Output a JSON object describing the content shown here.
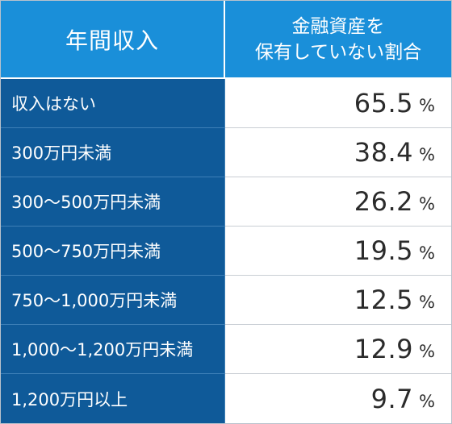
{
  "header": {
    "col1": "年間収入",
    "col2_line1": "金融資産を",
    "col2_line2": "保有していない割合"
  },
  "rows": [
    {
      "label": "収入はない",
      "value": "65.5",
      "unit": "%"
    },
    {
      "label": "300万円未満",
      "value": "38.4",
      "unit": "%"
    },
    {
      "label": "300〜500万円未満",
      "value": "26.2",
      "unit": "%"
    },
    {
      "label": "500〜750万円未満",
      "value": "19.5",
      "unit": "%"
    },
    {
      "label": "750〜1,000万円未満",
      "value": "12.5",
      "unit": "%"
    },
    {
      "label": "1,000〜1,200万円未満",
      "value": "12.9",
      "unit": "%"
    },
    {
      "label": "1,200万円以上",
      "value": "9.7",
      "unit": "%"
    }
  ],
  "colors": {
    "header_bg": "#1a8fd9",
    "label_bg": "#0f5a99",
    "value_bg": "#ffffff"
  }
}
